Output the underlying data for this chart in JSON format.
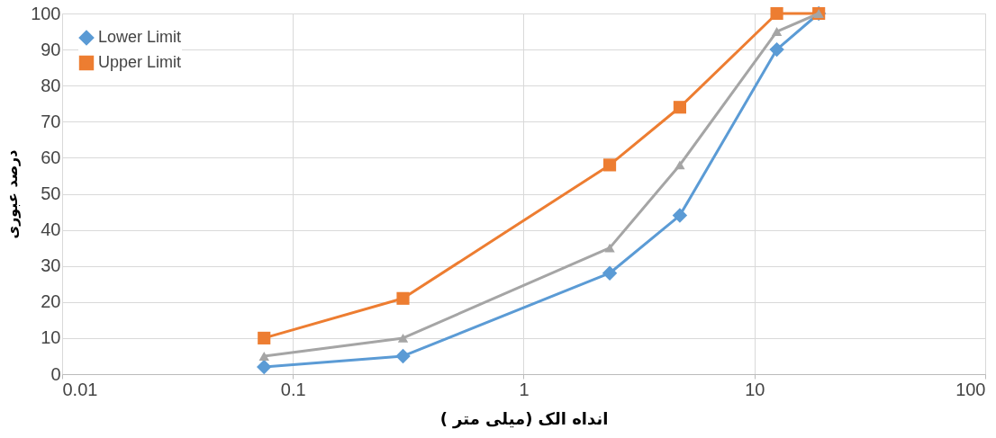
{
  "chart_data": {
    "type": "line",
    "xlabel": "انداه الک (میلی متر )",
    "ylabel": "درصد عبوری",
    "x": [
      0.075,
      0.3,
      2.36,
      4.75,
      12.5,
      19
    ],
    "series": [
      {
        "name": "Lower Limit",
        "color": "#5b9bd5",
        "marker": "diamond",
        "values": [
          2,
          5,
          28,
          44,
          90,
          100
        ]
      },
      {
        "name": "Upper Limit",
        "color": "#ed7d31",
        "marker": "square",
        "values": [
          10,
          21,
          58,
          74,
          100,
          100
        ]
      },
      {
        "color": "#a5a5a5",
        "marker": "triangle",
        "values": [
          5,
          10,
          35,
          58,
          95,
          100
        ]
      }
    ],
    "log": "x",
    "xlim": [
      0.01,
      100
    ],
    "xticks": [
      0.01,
      0.1,
      1,
      10,
      100
    ],
    "ylim": [
      0,
      100
    ],
    "yticks": [
      0,
      10,
      20,
      30,
      40,
      50,
      60,
      70,
      80,
      90,
      100
    ],
    "grid": true,
    "legend": "top left",
    "line_style": "solid"
  }
}
